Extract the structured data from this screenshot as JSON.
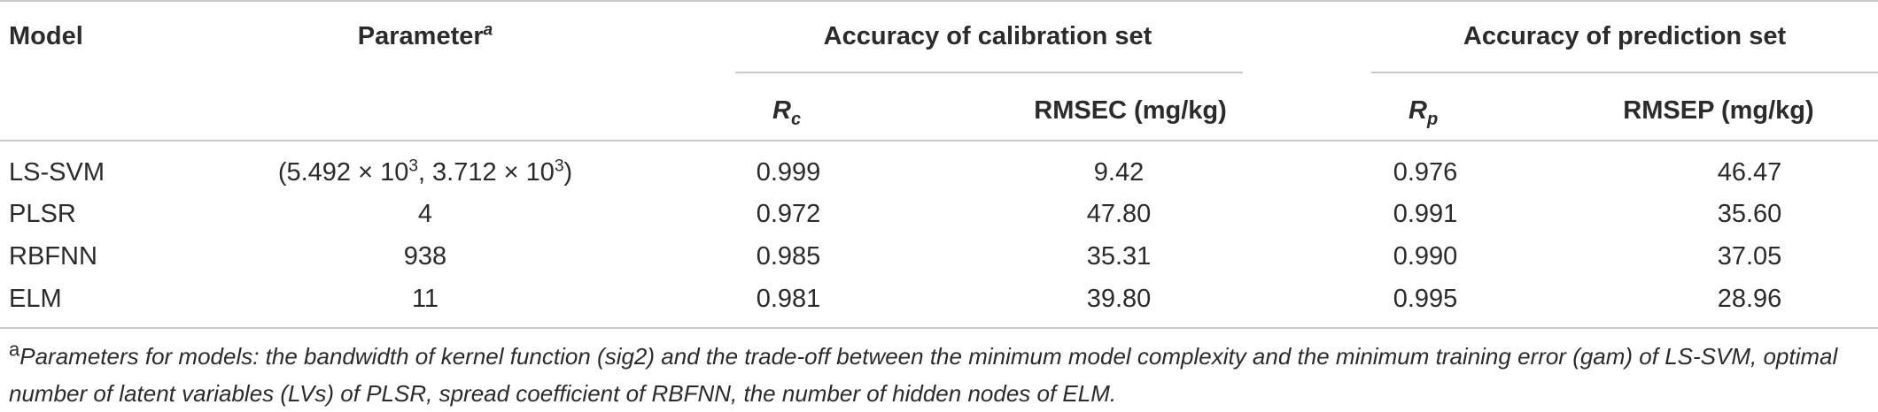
{
  "table": {
    "headers": {
      "model": "Model",
      "parameter": "Parameter",
      "parameter_marker": "a",
      "calibration_group": "Accuracy of calibration set",
      "prediction_group": "Accuracy of prediction set",
      "rc_main": "R",
      "rc_sub": "c",
      "rmsec": "RMSEC (mg/kg)",
      "rp_main": "R",
      "rp_sub": "p",
      "rmsep": "RMSEP (mg/kg)"
    },
    "rows": [
      {
        "model": "LS-SVM",
        "param_a": "(5.492 × 10",
        "param_a_exp": "3",
        "param_b": ", 3.712 × 10",
        "param_b_exp": "3",
        "param_c": ")",
        "rc": "0.999",
        "rmsec": "9.42",
        "rp": "0.976",
        "rmsep": "46.47"
      },
      {
        "model": "PLSR",
        "param": "4",
        "rc": "0.972",
        "rmsec": "47.80",
        "rp": "0.991",
        "rmsep": "35.60"
      },
      {
        "model": "RBFNN",
        "param": "938",
        "rc": "0.985",
        "rmsec": "35.31",
        "rp": "0.990",
        "rmsep": "37.05"
      },
      {
        "model": "ELM",
        "param": "11",
        "rc": "0.981",
        "rmsec": "39.80",
        "rp": "0.995",
        "rmsep": "28.96"
      }
    ],
    "footnote": {
      "marker": "a",
      "text": "Parameters for models: the bandwidth of kernel function (sig2) and the trade-off between the minimum model complexity and the minimum training error (gam) of LS-SVM, optimal number of latent variables (LVs) of PLSR, spread coefficient of RBFNN, the number of hidden nodes of ELM."
    }
  }
}
